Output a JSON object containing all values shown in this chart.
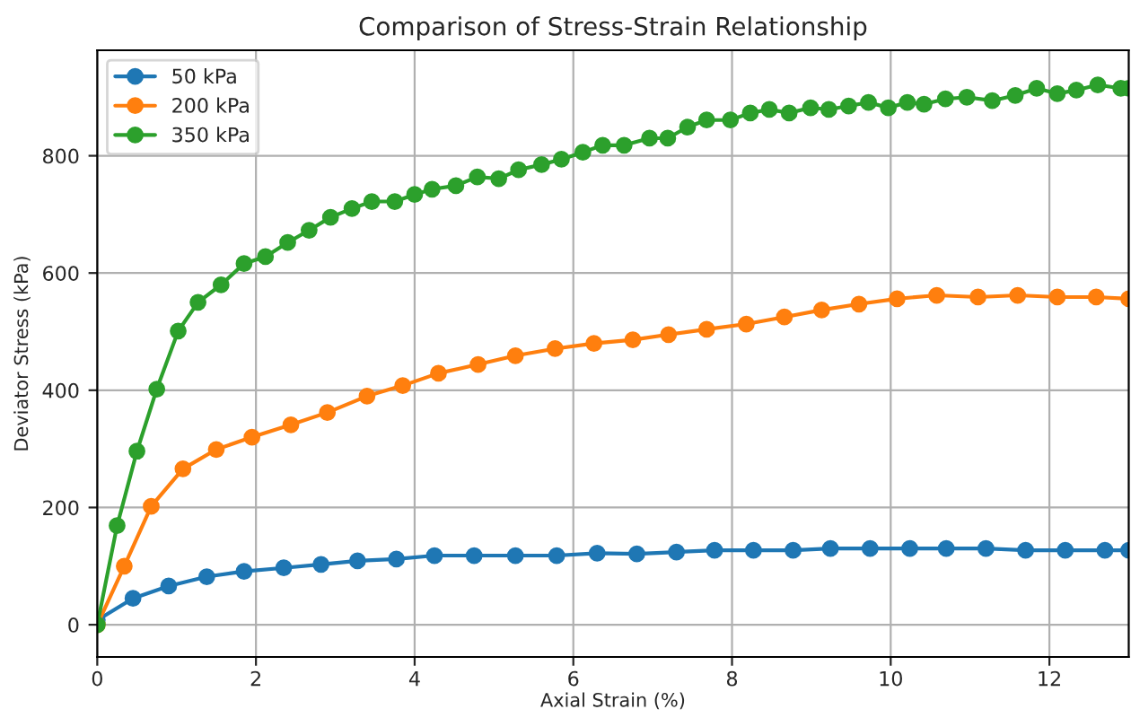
{
  "chart_data": {
    "type": "line",
    "title": "Comparison of Stress-Strain Relationship",
    "xlabel": "Axial Strain (%)",
    "ylabel": "Deviator Stress (kPa)",
    "xlim": [
      0,
      13
    ],
    "ylim": [
      -55,
      980
    ],
    "xticks": [
      0,
      2,
      4,
      6,
      8,
      10,
      12
    ],
    "yticks": [
      0,
      200,
      400,
      600,
      800
    ],
    "grid": true,
    "legend": "top left",
    "marker": "circle",
    "line_style": "solid",
    "series": [
      {
        "name": "50 kPa",
        "color": "#1f77b4",
        "x": [
          0,
          0.45,
          0.9,
          1.38,
          1.85,
          2.35,
          2.82,
          3.28,
          3.77,
          4.25,
          4.75,
          5.27,
          5.79,
          6.3,
          6.8,
          7.3,
          7.78,
          8.27,
          8.77,
          9.24,
          9.74,
          10.24,
          10.7,
          11.2,
          11.7,
          12.2,
          12.7,
          13.0
        ],
        "values": [
          8,
          45,
          66,
          82,
          91,
          97,
          103,
          109,
          112,
          118,
          118,
          118,
          118,
          122,
          121,
          124,
          127,
          127,
          127,
          130,
          130,
          130,
          130,
          130,
          127,
          127,
          127,
          127
        ]
      },
      {
        "name": "200 kPa",
        "color": "#ff7f0e",
        "x": [
          0,
          0.34,
          0.68,
          1.08,
          1.5,
          1.95,
          2.44,
          2.9,
          3.4,
          3.85,
          4.3,
          4.8,
          5.27,
          5.77,
          6.26,
          6.75,
          7.2,
          7.68,
          8.18,
          8.66,
          9.13,
          9.6,
          10.08,
          10.58,
          11.1,
          11.6,
          12.1,
          12.59,
          13.0
        ],
        "values": [
          0,
          100,
          202,
          266,
          299,
          320,
          341,
          362,
          390,
          408,
          429,
          444,
          459,
          471,
          480,
          486,
          495,
          504,
          513,
          525,
          537,
          547,
          556,
          562,
          559,
          562,
          559,
          559,
          556
        ]
      },
      {
        "name": "350 kPa",
        "color": "#2ca02c",
        "x": [
          0,
          0.25,
          0.5,
          0.75,
          1.02,
          1.27,
          1.56,
          1.85,
          2.12,
          2.4,
          2.67,
          2.94,
          3.21,
          3.46,
          3.75,
          4.0,
          4.22,
          4.52,
          4.79,
          5.06,
          5.31,
          5.6,
          5.85,
          6.12,
          6.37,
          6.64,
          6.96,
          7.19,
          7.44,
          7.68,
          7.98,
          8.23,
          8.47,
          8.72,
          8.99,
          9.22,
          9.47,
          9.72,
          9.97,
          10.21,
          10.42,
          10.69,
          10.96,
          11.28,
          11.57,
          11.84,
          12.1,
          12.34,
          12.61,
          12.9,
          13.0
        ],
        "values": [
          0,
          169,
          296,
          402,
          501,
          550,
          580,
          616,
          628,
          652,
          673,
          695,
          710,
          722,
          722,
          734,
          743,
          749,
          764,
          761,
          776,
          785,
          794,
          806,
          818,
          818,
          830,
          830,
          849,
          861,
          861,
          873,
          879,
          873,
          882,
          879,
          885,
          891,
          882,
          891,
          888,
          897,
          900,
          894,
          903,
          915,
          906,
          912,
          921,
          915,
          915
        ]
      }
    ]
  }
}
